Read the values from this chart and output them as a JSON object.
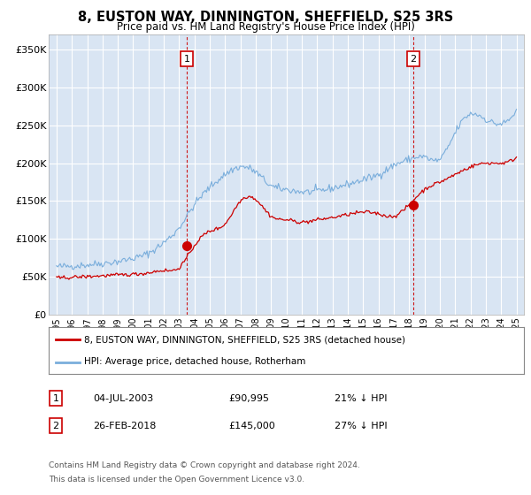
{
  "title": "8, EUSTON WAY, DINNINGTON, SHEFFIELD, S25 3RS",
  "subtitle": "Price paid vs. HM Land Registry's House Price Index (HPI)",
  "ylim": [
    0,
    370000
  ],
  "yticks": [
    0,
    50000,
    100000,
    150000,
    200000,
    250000,
    300000,
    350000
  ],
  "ytick_labels": [
    "£0",
    "£50K",
    "£100K",
    "£150K",
    "£200K",
    "£250K",
    "£300K",
    "£350K"
  ],
  "background_color": "#d9e5f3",
  "hpi_color": "#7aaedc",
  "price_color": "#cc0000",
  "marker1_x": 8.5,
  "marker1_value": 90995,
  "marker1_label": "1",
  "marker1_date_str": "04-JUL-2003",
  "marker1_price_str": "£90,995",
  "marker1_pct_str": "21% ↓ HPI",
  "marker2_x": 23.25,
  "marker2_value": 145000,
  "marker2_label": "2",
  "marker2_date_str": "26-FEB-2018",
  "marker2_price_str": "£145,000",
  "marker2_pct_str": "27% ↓ HPI",
  "legend_line1": "8, EUSTON WAY, DINNINGTON, SHEFFIELD, S25 3RS (detached house)",
  "legend_line2": "HPI: Average price, detached house, Rotherham",
  "footer_line1": "Contains HM Land Registry data © Crown copyright and database right 2024.",
  "footer_line2": "This data is licensed under the Open Government Licence v3.0.",
  "x_years": [
    1995,
    1996,
    1997,
    1998,
    1999,
    2000,
    2001,
    2002,
    2003,
    2004,
    2005,
    2006,
    2007,
    2008,
    2009,
    2010,
    2011,
    2012,
    2013,
    2014,
    2015,
    2016,
    2017,
    2018,
    2019,
    2020,
    2021,
    2022,
    2023,
    2024,
    2025
  ],
  "hpi_values": [
    63000,
    64000,
    65500,
    67500,
    70000,
    74000,
    81000,
    95000,
    115000,
    145000,
    168000,
    185000,
    195000,
    188000,
    170000,
    165000,
    162000,
    163000,
    167000,
    172000,
    178000,
    185000,
    197000,
    205000,
    208000,
    205000,
    240000,
    265000,
    258000,
    252000,
    270000
  ],
  "price_values_y": [
    48000,
    49000,
    50000,
    51000,
    52000,
    53000,
    55000,
    58000,
    62000,
    91000,
    110000,
    120000,
    150000,
    152000,
    130000,
    125000,
    122000,
    125000,
    128000,
    132000,
    135000,
    133000,
    130000,
    145000,
    165000,
    175000,
    185000,
    195000,
    200000,
    200000,
    208000
  ]
}
